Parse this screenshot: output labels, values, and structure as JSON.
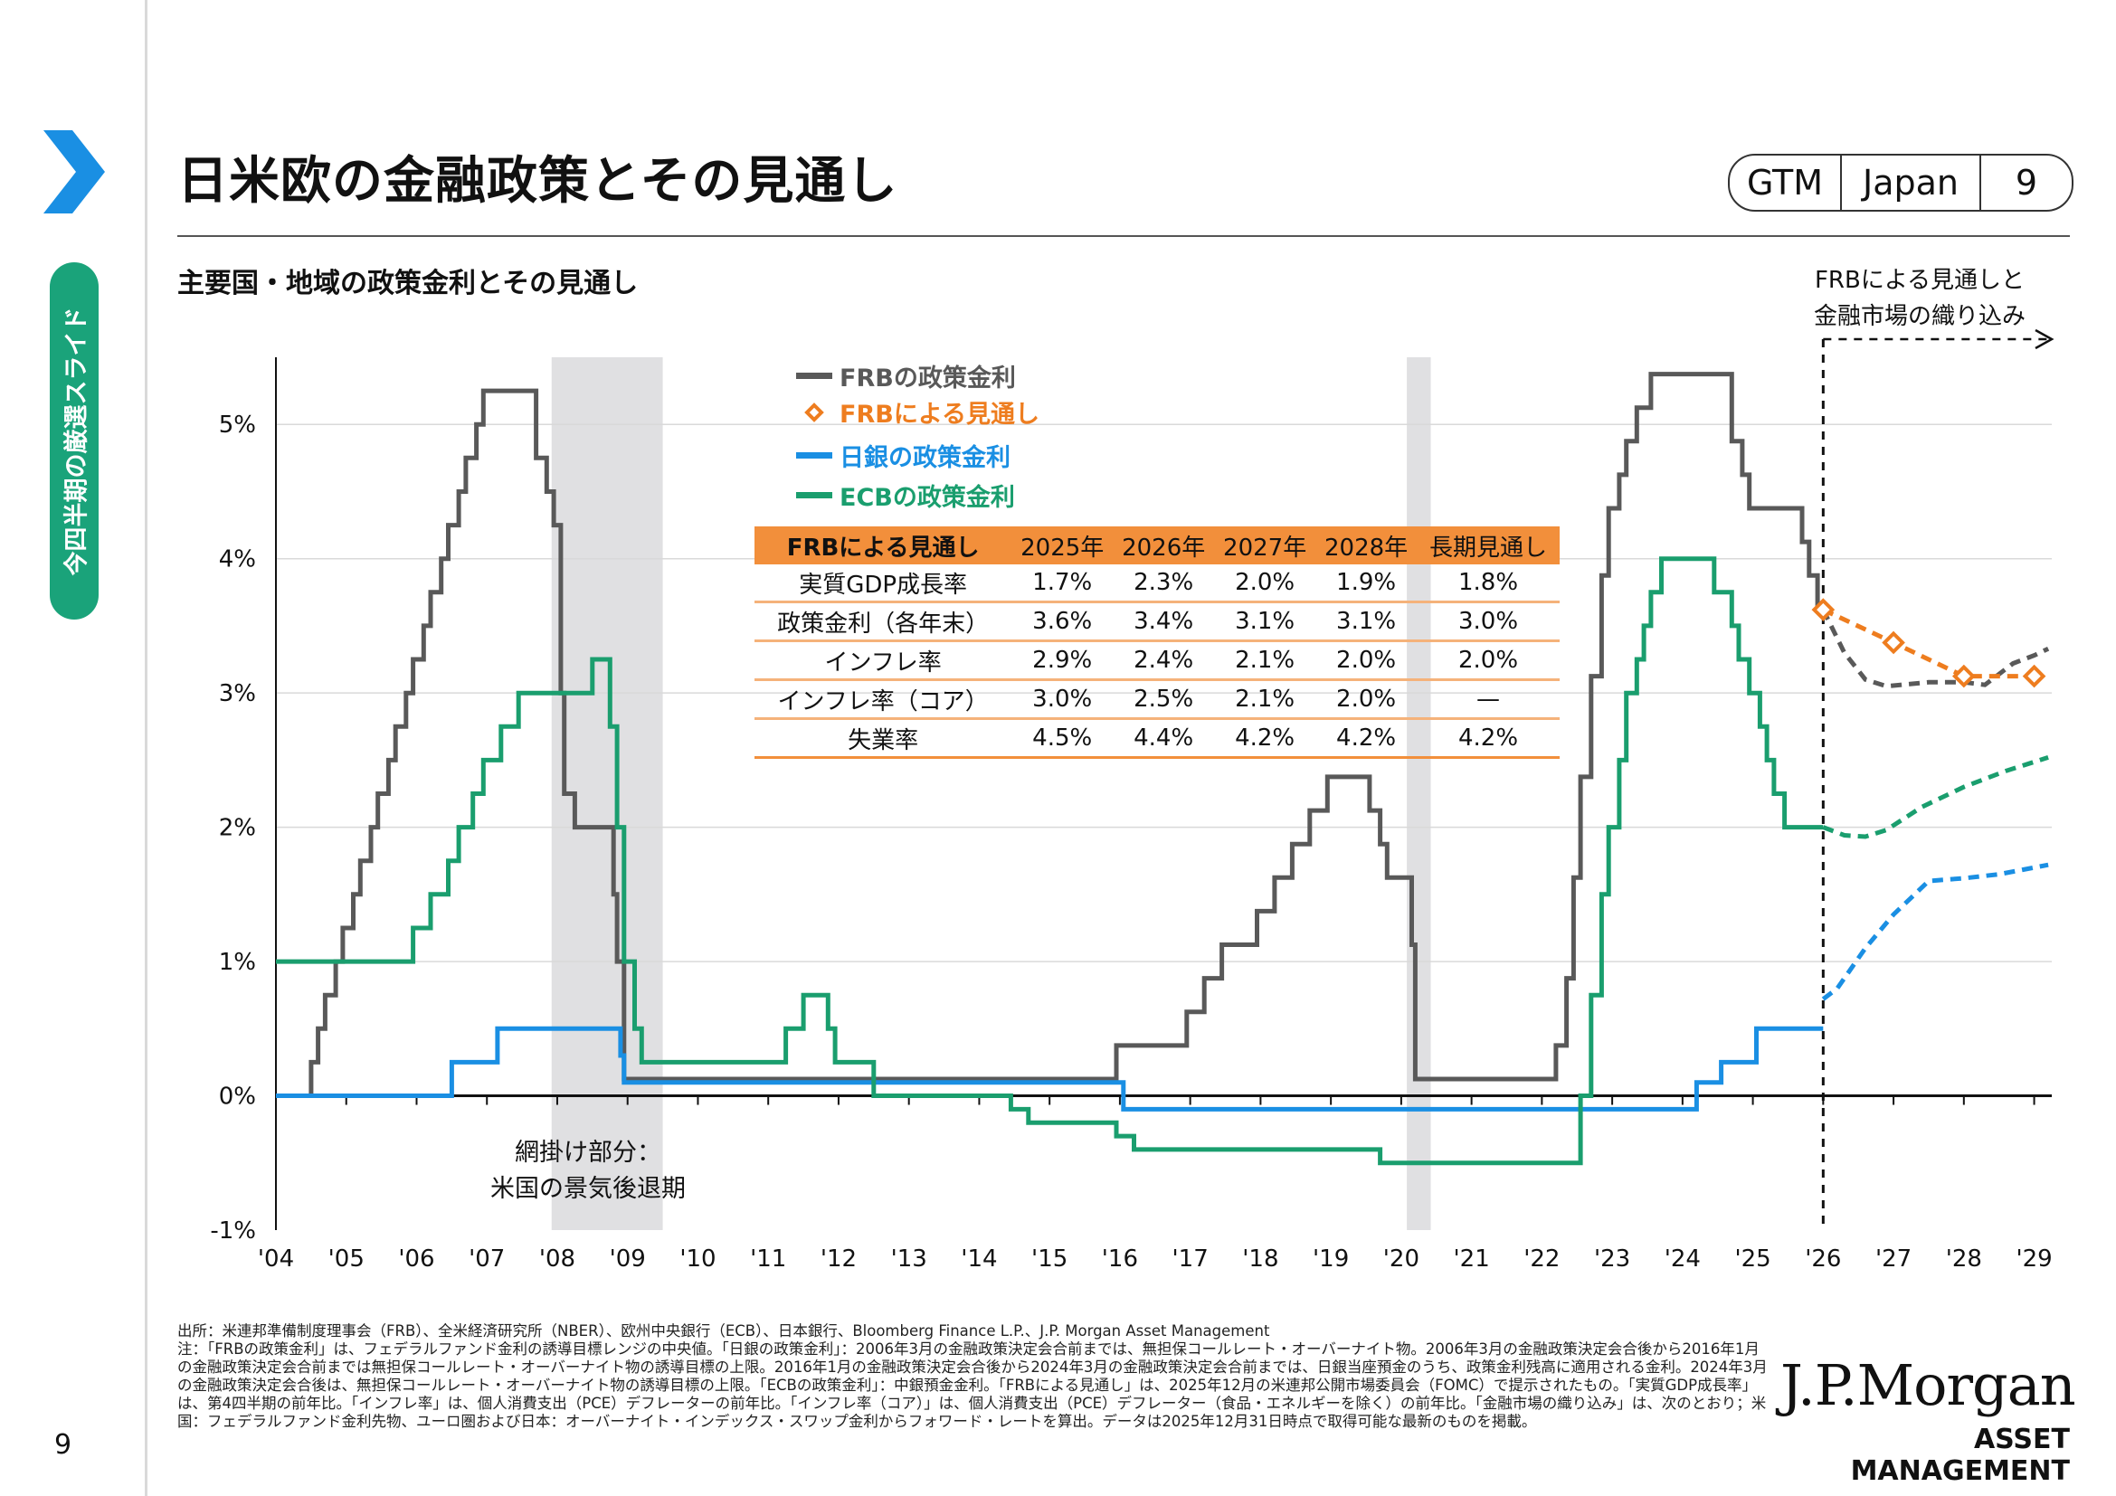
{
  "page": {
    "title": "日米欧の金融政策とその見通し",
    "subtitle": "主要国・地域の政策金利とその見通し",
    "side_tab": "今四半期の厳選スライド",
    "page_number": "9",
    "badge": {
      "gtm": "GTM",
      "region": "Japan",
      "num": "9"
    },
    "forecast_note": [
      "FRBによる見通しと",
      "金融市場の織り込み"
    ],
    "shade_note": [
      "網掛け部分：",
      "米国の景気後退期"
    ],
    "logo_line1": "J.P.Morgan",
    "logo_line2": "ASSET MANAGEMENT",
    "footnotes": "出所：米連邦準備制度理事会（FRB）、全米経済研究所（NBER）、欧州中央銀行（ECB）、日本銀行、Bloomberg Finance L.P.、J.P. Morgan Asset Management\n注：「FRBの政策金利」は、フェデラルファンド金利の誘導目標レンジの中央値。「日銀の政策金利」：2006年3月の金融政策決定会合前までは、無担保コールレート・オーバーナイト物。2006年3月の金融政策決定会合後から2016年1月の金融政策決定会合前までは無担保コールレート・オーバーナイト物の誘導目標の上限。2016年1月の金融政策決定会合後から2024年3月の金融政策決定会合前までは、日銀当座預金のうち、政策金利残高に適用される金利。2024年3月の金融政策決定会合後は、無担保コールレート・オーバーナイト物の誘導目標の上限。「ECBの政策金利」：中銀預金金利。「FRBによる見通し」は、2025年12月の米連邦公開市場委員会（FOMC）で提示されたもの。「実質GDP成長率」は、第4四半期の前年比。「インフレ率」は、個人消費支出（PCE）デフレーターの前年比。「インフレ率（コア）」は、個人消費支出（PCE）デフレーター（食品・エネルギーを除く）の前年比。「金融市場の織り込み」は、次のとおり；米国：フェデラルファンド金利先物、ユーロ圏および日本：オーバーナイト・インデックス・スワップ金利からフォワード・レートを算出。データは2025年12月31日時点で取得可能な最新のものを掲載。"
  },
  "colors": {
    "frb": "#595959",
    "frb_forecast": "#ee7d1f",
    "boj": "#1a8fe3",
    "ecb": "#1a9e6e",
    "shade": "#e0e0e2",
    "tab": "#1aa37a"
  },
  "chart_data": {
    "type": "line",
    "xlabel": "",
    "ylabel": "",
    "x_ticks": [
      "'04",
      "'05",
      "'06",
      "'07",
      "'08",
      "'09",
      "'10",
      "'11",
      "'12",
      "'13",
      "'14",
      "'15",
      "'16",
      "'17",
      "'18",
      "'19",
      "'20",
      "'21",
      "'22",
      "'23",
      "'24",
      "'25",
      "'26",
      "'27",
      "'28",
      "'29"
    ],
    "y_ticks": [
      "-1%",
      "0%",
      "1%",
      "2%",
      "3%",
      "4%",
      "5%"
    ],
    "ylim": [
      -1,
      5.5
    ],
    "xlim": [
      2004,
      2029.25
    ],
    "recessions": [
      [
        2007.92,
        2009.5
      ],
      [
        2020.08,
        2020.42
      ]
    ],
    "forecast_start": 2026.0,
    "legend": [
      "FRBの政策金利",
      "FRBによる見通し",
      "日銀の政策金利",
      "ECBの政策金利"
    ],
    "series": [
      {
        "name": "FRBの政策金利",
        "key": "frb",
        "step": true,
        "points": [
          [
            2004.0,
            0.0
          ],
          [
            2004.5,
            0.0
          ],
          [
            2004.5,
            0.25
          ],
          [
            2004.6,
            0.25
          ],
          [
            2004.6,
            0.5
          ],
          [
            2004.7,
            0.5
          ],
          [
            2004.7,
            0.75
          ],
          [
            2004.85,
            0.75
          ],
          [
            2004.85,
            1.0
          ],
          [
            2004.95,
            1.0
          ],
          [
            2004.95,
            1.25
          ],
          [
            2005.1,
            1.25
          ],
          [
            2005.1,
            1.5
          ],
          [
            2005.2,
            1.5
          ],
          [
            2005.2,
            1.75
          ],
          [
            2005.35,
            1.75
          ],
          [
            2005.35,
            2.0
          ],
          [
            2005.45,
            2.0
          ],
          [
            2005.45,
            2.25
          ],
          [
            2005.6,
            2.25
          ],
          [
            2005.6,
            2.5
          ],
          [
            2005.7,
            2.5
          ],
          [
            2005.7,
            2.75
          ],
          [
            2005.85,
            2.75
          ],
          [
            2005.85,
            3.0
          ],
          [
            2005.95,
            3.0
          ],
          [
            2005.95,
            3.25
          ],
          [
            2006.1,
            3.25
          ],
          [
            2006.1,
            3.5
          ],
          [
            2006.2,
            3.5
          ],
          [
            2006.2,
            3.75
          ],
          [
            2006.35,
            3.75
          ],
          [
            2006.35,
            4.0
          ],
          [
            2006.45,
            4.0
          ],
          [
            2006.45,
            4.25
          ],
          [
            2006.6,
            4.25
          ],
          [
            2006.6,
            4.5
          ],
          [
            2006.7,
            4.5
          ],
          [
            2006.7,
            4.75
          ],
          [
            2006.85,
            4.75
          ],
          [
            2006.85,
            5.0
          ],
          [
            2006.95,
            5.0
          ],
          [
            2006.95,
            5.25
          ],
          [
            2007.7,
            5.25
          ],
          [
            2007.7,
            4.75
          ],
          [
            2007.85,
            4.75
          ],
          [
            2007.85,
            4.5
          ],
          [
            2007.95,
            4.5
          ],
          [
            2007.95,
            4.25
          ],
          [
            2008.05,
            4.25
          ],
          [
            2008.05,
            3.0
          ],
          [
            2008.1,
            3.0
          ],
          [
            2008.1,
            2.25
          ],
          [
            2008.25,
            2.25
          ],
          [
            2008.25,
            2.0
          ],
          [
            2008.8,
            2.0
          ],
          [
            2008.8,
            1.5
          ],
          [
            2008.85,
            1.5
          ],
          [
            2008.85,
            1.0
          ],
          [
            2008.95,
            1.0
          ],
          [
            2008.95,
            0.125
          ],
          [
            2015.95,
            0.125
          ],
          [
            2015.95,
            0.375
          ],
          [
            2016.95,
            0.375
          ],
          [
            2016.95,
            0.625
          ],
          [
            2017.2,
            0.625
          ],
          [
            2017.2,
            0.875
          ],
          [
            2017.45,
            0.875
          ],
          [
            2017.45,
            1.125
          ],
          [
            2017.95,
            1.125
          ],
          [
            2017.95,
            1.375
          ],
          [
            2018.2,
            1.375
          ],
          [
            2018.2,
            1.625
          ],
          [
            2018.45,
            1.625
          ],
          [
            2018.45,
            1.875
          ],
          [
            2018.7,
            1.875
          ],
          [
            2018.7,
            2.125
          ],
          [
            2018.95,
            2.125
          ],
          [
            2018.95,
            2.375
          ],
          [
            2019.55,
            2.375
          ],
          [
            2019.55,
            2.125
          ],
          [
            2019.7,
            2.125
          ],
          [
            2019.7,
            1.875
          ],
          [
            2019.8,
            1.875
          ],
          [
            2019.8,
            1.625
          ],
          [
            2020.15,
            1.625
          ],
          [
            2020.15,
            1.125
          ],
          [
            2020.2,
            1.125
          ],
          [
            2020.2,
            0.125
          ],
          [
            2022.2,
            0.125
          ],
          [
            2022.2,
            0.375
          ],
          [
            2022.35,
            0.375
          ],
          [
            2022.35,
            0.875
          ],
          [
            2022.45,
            0.875
          ],
          [
            2022.45,
            1.625
          ],
          [
            2022.55,
            1.625
          ],
          [
            2022.55,
            2.375
          ],
          [
            2022.7,
            2.375
          ],
          [
            2022.7,
            3.125
          ],
          [
            2022.85,
            3.125
          ],
          [
            2022.85,
            3.875
          ],
          [
            2022.95,
            3.875
          ],
          [
            2022.95,
            4.375
          ],
          [
            2023.1,
            4.375
          ],
          [
            2023.1,
            4.625
          ],
          [
            2023.2,
            4.625
          ],
          [
            2023.2,
            4.875
          ],
          [
            2023.35,
            4.875
          ],
          [
            2023.35,
            5.125
          ],
          [
            2023.55,
            5.125
          ],
          [
            2023.55,
            5.375
          ],
          [
            2024.7,
            5.375
          ],
          [
            2024.7,
            4.875
          ],
          [
            2024.85,
            4.875
          ],
          [
            2024.85,
            4.625
          ],
          [
            2024.95,
            4.625
          ],
          [
            2024.95,
            4.375
          ],
          [
            2025.7,
            4.375
          ],
          [
            2025.7,
            4.125
          ],
          [
            2025.8,
            4.125
          ],
          [
            2025.8,
            3.875
          ],
          [
            2025.92,
            3.875
          ],
          [
            2025.92,
            3.625
          ],
          [
            2026.0,
            3.625
          ]
        ]
      },
      {
        "name": "FRB market implied",
        "key": "frb",
        "dashed": true,
        "points": [
          [
            2026.0,
            3.62
          ],
          [
            2026.3,
            3.3
          ],
          [
            2026.6,
            3.1
          ],
          [
            2026.9,
            3.05
          ],
          [
            2027.5,
            3.08
          ],
          [
            2028.0,
            3.08
          ],
          [
            2028.3,
            3.06
          ],
          [
            2028.7,
            3.22
          ],
          [
            2029.0,
            3.28
          ],
          [
            2029.2,
            3.33
          ]
        ]
      },
      {
        "name": "FRBによる見通し",
        "key": "frb_forecast",
        "dashed": true,
        "markers": true,
        "points": [
          [
            2026.0,
            3.62
          ],
          [
            2027.0,
            3.375
          ],
          [
            2028.0,
            3.125
          ],
          [
            2029.0,
            3.125
          ]
        ]
      },
      {
        "name": "日銀の政策金利",
        "key": "boj",
        "step": true,
        "points": [
          [
            2004.0,
            0.0
          ],
          [
            2006.5,
            0.0
          ],
          [
            2006.5,
            0.25
          ],
          [
            2007.15,
            0.25
          ],
          [
            2007.15,
            0.5
          ],
          [
            2008.9,
            0.5
          ],
          [
            2008.9,
            0.3
          ],
          [
            2008.95,
            0.3
          ],
          [
            2008.95,
            0.1
          ],
          [
            2016.05,
            0.1
          ],
          [
            2016.05,
            -0.1
          ],
          [
            2024.2,
            -0.1
          ],
          [
            2024.2,
            0.1
          ],
          [
            2024.55,
            0.1
          ],
          [
            2024.55,
            0.25
          ],
          [
            2025.05,
            0.25
          ],
          [
            2025.05,
            0.5
          ],
          [
            2026.0,
            0.5
          ]
        ]
      },
      {
        "name": "BOJ market implied",
        "key": "boj",
        "dashed": true,
        "points": [
          [
            2026.0,
            0.72
          ],
          [
            2026.2,
            0.8
          ],
          [
            2026.6,
            1.1
          ],
          [
            2027.0,
            1.35
          ],
          [
            2027.5,
            1.6
          ],
          [
            2028.0,
            1.62
          ],
          [
            2028.5,
            1.65
          ],
          [
            2029.2,
            1.72
          ]
        ]
      },
      {
        "name": "ECBの政策金利",
        "key": "ecb",
        "step": true,
        "points": [
          [
            2004.0,
            1.0
          ],
          [
            2005.95,
            1.0
          ],
          [
            2005.95,
            1.25
          ],
          [
            2006.2,
            1.25
          ],
          [
            2006.2,
            1.5
          ],
          [
            2006.45,
            1.5
          ],
          [
            2006.45,
            1.75
          ],
          [
            2006.6,
            1.75
          ],
          [
            2006.6,
            2.0
          ],
          [
            2006.8,
            2.0
          ],
          [
            2006.8,
            2.25
          ],
          [
            2006.95,
            2.25
          ],
          [
            2006.95,
            2.5
          ],
          [
            2007.2,
            2.5
          ],
          [
            2007.2,
            2.75
          ],
          [
            2007.45,
            2.75
          ],
          [
            2007.45,
            3.0
          ],
          [
            2008.5,
            3.0
          ],
          [
            2008.5,
            3.25
          ],
          [
            2008.75,
            3.25
          ],
          [
            2008.75,
            2.75
          ],
          [
            2008.85,
            2.75
          ],
          [
            2008.85,
            2.0
          ],
          [
            2008.95,
            2.0
          ],
          [
            2008.95,
            1.0
          ],
          [
            2009.1,
            1.0
          ],
          [
            2009.1,
            0.5
          ],
          [
            2009.2,
            0.5
          ],
          [
            2009.2,
            0.25
          ],
          [
            2011.25,
            0.25
          ],
          [
            2011.25,
            0.5
          ],
          [
            2011.5,
            0.5
          ],
          [
            2011.5,
            0.75
          ],
          [
            2011.85,
            0.75
          ],
          [
            2011.85,
            0.5
          ],
          [
            2011.95,
            0.5
          ],
          [
            2011.95,
            0.25
          ],
          [
            2012.5,
            0.25
          ],
          [
            2012.5,
            0.0
          ],
          [
            2014.45,
            0.0
          ],
          [
            2014.45,
            -0.1
          ],
          [
            2014.7,
            -0.1
          ],
          [
            2014.7,
            -0.2
          ],
          [
            2015.95,
            -0.2
          ],
          [
            2015.95,
            -0.3
          ],
          [
            2016.2,
            -0.3
          ],
          [
            2016.2,
            -0.4
          ],
          [
            2019.7,
            -0.4
          ],
          [
            2019.7,
            -0.5
          ],
          [
            2022.55,
            -0.5
          ],
          [
            2022.55,
            0.0
          ],
          [
            2022.7,
            0.0
          ],
          [
            2022.7,
            0.75
          ],
          [
            2022.85,
            0.75
          ],
          [
            2022.85,
            1.5
          ],
          [
            2022.95,
            1.5
          ],
          [
            2022.95,
            2.0
          ],
          [
            2023.1,
            2.0
          ],
          [
            2023.1,
            2.5
          ],
          [
            2023.2,
            2.5
          ],
          [
            2023.2,
            3.0
          ],
          [
            2023.35,
            3.0
          ],
          [
            2023.35,
            3.25
          ],
          [
            2023.45,
            3.25
          ],
          [
            2023.45,
            3.5
          ],
          [
            2023.55,
            3.5
          ],
          [
            2023.55,
            3.75
          ],
          [
            2023.7,
            3.75
          ],
          [
            2023.7,
            4.0
          ],
          [
            2024.45,
            4.0
          ],
          [
            2024.45,
            3.75
          ],
          [
            2024.7,
            3.75
          ],
          [
            2024.7,
            3.5
          ],
          [
            2024.8,
            3.5
          ],
          [
            2024.8,
            3.25
          ],
          [
            2024.95,
            3.25
          ],
          [
            2024.95,
            3.0
          ],
          [
            2025.1,
            3.0
          ],
          [
            2025.1,
            2.75
          ],
          [
            2025.2,
            2.75
          ],
          [
            2025.2,
            2.5
          ],
          [
            2025.3,
            2.5
          ],
          [
            2025.3,
            2.25
          ],
          [
            2025.45,
            2.25
          ],
          [
            2025.45,
            2.0
          ],
          [
            2026.0,
            2.0
          ]
        ]
      },
      {
        "name": "ECB market implied",
        "key": "ecb",
        "dashed": true,
        "points": [
          [
            2026.0,
            2.0
          ],
          [
            2026.3,
            1.94
          ],
          [
            2026.6,
            1.93
          ],
          [
            2026.9,
            1.98
          ],
          [
            2027.4,
            2.15
          ],
          [
            2028.0,
            2.3
          ],
          [
            2028.6,
            2.42
          ],
          [
            2029.2,
            2.52
          ]
        ]
      }
    ],
    "forecast_table": {
      "header": [
        "FRBによる見通し",
        "2025年",
        "2026年",
        "2027年",
        "2028年",
        "長期見通し"
      ],
      "rows": [
        [
          "実質GDP成長率",
          "1.7%",
          "2.3%",
          "2.0%",
          "1.9%",
          "1.8%"
        ],
        [
          "政策金利（各年末）",
          "3.6%",
          "3.4%",
          "3.1%",
          "3.1%",
          "3.0%"
        ],
        [
          "インフレ率",
          "2.9%",
          "2.4%",
          "2.1%",
          "2.0%",
          "2.0%"
        ],
        [
          "インフレ率（コア）",
          "3.0%",
          "2.5%",
          "2.1%",
          "2.0%",
          "—"
        ],
        [
          "失業率",
          "4.5%",
          "4.4%",
          "4.2%",
          "4.2%",
          "4.2%"
        ]
      ]
    }
  }
}
